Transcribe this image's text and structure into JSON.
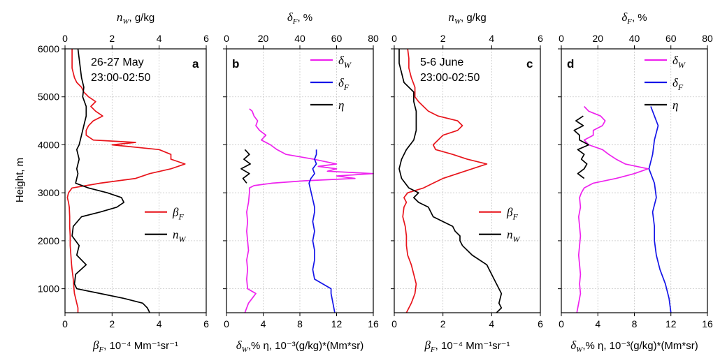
{
  "chart_data": [
    {
      "type": "line",
      "panel_label": "a",
      "annotation": [
        "26-27 May",
        "23:00-02:50"
      ],
      "ylabel": "Height, m",
      "ylim": [
        500,
        6000
      ],
      "yticks": [
        1000,
        2000,
        3000,
        4000,
        5000,
        6000
      ],
      "bottom_axis": {
        "label_sym": "β",
        "label_sub": "F",
        "label_rest": ", 10⁻⁴ Mm⁻¹sr⁻¹",
        "lim": [
          0,
          6
        ],
        "ticks": [
          "0",
          "2",
          "4",
          "6"
        ]
      },
      "top_axis": {
        "label_sym": "n",
        "label_sub": "W",
        "label_rest": ", g/kg",
        "lim": [
          0,
          6
        ],
        "ticks": [
          "0",
          "2",
          "4",
          "6"
        ]
      },
      "legend": {
        "position": "center-right"
      },
      "series": [
        {
          "name": "β",
          "sub": "F",
          "axis": "bottom",
          "color": "#e8141b",
          "y": [
            500,
            600,
            700,
            800,
            900,
            1000,
            1200,
            1400,
            1500,
            1700,
            1900,
            2100,
            2300,
            2500,
            2700,
            2800,
            2900,
            3000,
            3100,
            3200,
            3300,
            3400,
            3500,
            3600,
            3650,
            3700,
            3800,
            3900,
            4000,
            4050,
            4100,
            4200,
            4300,
            4400,
            4500,
            4600,
            4700,
            4800,
            4900,
            5000,
            5100,
            5200,
            5300,
            5400,
            5500,
            5600,
            5700,
            5800,
            5900,
            6000
          ],
          "x": [
            0.55,
            0.55,
            0.5,
            0.45,
            0.4,
            0.38,
            0.35,
            0.3,
            0.28,
            0.25,
            0.22,
            0.22,
            0.2,
            0.2,
            0.18,
            0.15,
            0.1,
            0.15,
            0.3,
            1.5,
            3.0,
            3.6,
            4.5,
            5.1,
            4.8,
            4.5,
            4.5,
            4.0,
            2.0,
            3.0,
            1.2,
            0.9,
            0.9,
            1.0,
            1.2,
            1.6,
            1.3,
            1.1,
            1.3,
            1.0,
            0.8,
            0.7,
            0.5,
            0.4,
            0.35,
            0.3,
            0.3,
            0.3,
            0.3,
            0.3
          ]
        },
        {
          "name": "n",
          "sub": "W",
          "axis": "top",
          "color": "#000000",
          "y": [
            500,
            600,
            700,
            800,
            900,
            1000,
            1100,
            1300,
            1500,
            1700,
            1900,
            2100,
            2300,
            2500,
            2600,
            2700,
            2800,
            2900,
            3000,
            3100,
            3200,
            3300,
            3400,
            3500,
            3600,
            3700,
            3800,
            3900,
            4000,
            4100,
            4200,
            4400,
            4600,
            4800,
            5000,
            5200,
            5400,
            5600,
            5800,
            6000
          ],
          "x": [
            3.6,
            3.5,
            3.3,
            2.5,
            1.5,
            0.5,
            0.4,
            0.45,
            0.9,
            0.5,
            0.6,
            0.3,
            0.35,
            0.7,
            1.5,
            2.2,
            2.5,
            2.4,
            1.8,
            1.0,
            0.45,
            0.5,
            0.55,
            0.5,
            0.55,
            0.6,
            0.55,
            0.5,
            0.6,
            0.65,
            0.7,
            0.8,
            0.9,
            0.9,
            0.75,
            0.8,
            0.7,
            0.65,
            0.6,
            0.55
          ]
        }
      ]
    },
    {
      "type": "line",
      "panel_label": "b",
      "bottom_axis": {
        "label_sym": "δ",
        "label_sub": "W",
        "label_rest": ",%  η, 10⁻³(g/kg)*(Mm*sr)",
        "lim": [
          0,
          16
        ],
        "ticks": [
          "0",
          "4",
          "8",
          "12",
          "16"
        ]
      },
      "top_axis": {
        "label_sym": "δ",
        "label_sub": "F",
        "label_rest": ", %",
        "lim": [
          0,
          80
        ],
        "ticks": [
          "0",
          "20",
          "40",
          "60",
          "80"
        ]
      },
      "ylim": [
        500,
        6000
      ],
      "legend": {
        "position": "top-right"
      },
      "series": [
        {
          "name": "δ",
          "sub": "W",
          "axis": "bottom",
          "color": "#ee22ee",
          "y": [
            500,
            700,
            900,
            1000,
            1200,
            1400,
            1600,
            1800,
            2000,
            2200,
            2400,
            2600,
            2800,
            3000,
            3100,
            3150,
            3200,
            3250,
            3300,
            3350,
            3400,
            3450,
            3500,
            3550,
            3600,
            3700,
            3800,
            3900,
            4000,
            4100,
            4200,
            4300,
            4400,
            4500,
            4600,
            4700,
            4750
          ],
          "x": [
            2.0,
            2.4,
            3.2,
            2.3,
            2.2,
            2.3,
            2.2,
            2.4,
            2.3,
            2.2,
            2.3,
            2.2,
            2.4,
            2.5,
            2.5,
            3.0,
            5.0,
            8.5,
            14.0,
            12.0,
            16.0,
            11.0,
            12.0,
            10.0,
            12.0,
            9.5,
            6.5,
            5.5,
            4.8,
            3.8,
            4.3,
            3.6,
            3.2,
            3.4,
            3.0,
            2.8,
            2.5
          ]
        },
        {
          "name": "δ",
          "sub": "F",
          "axis": "top",
          "color": "#1414e8",
          "y": [
            500,
            700,
            900,
            1000,
            1200,
            1400,
            1600,
            1800,
            2000,
            2200,
            2400,
            2600,
            2700,
            3200,
            3300,
            3400,
            3500,
            3600,
            3700,
            3800,
            3900
          ],
          "x": [
            59,
            58,
            57,
            57,
            48,
            47,
            48,
            48,
            47,
            48,
            47,
            48,
            48,
            45,
            46,
            48,
            47,
            49,
            48,
            49,
            49
          ]
        },
        {
          "name": "η",
          "axis": "bottom",
          "color": "#000000",
          "y": [
            3200,
            3300,
            3400,
            3500,
            3600,
            3700,
            3800,
            3900
          ],
          "x": [
            2.2,
            1.8,
            2.5,
            1.6,
            2.6,
            1.9,
            2.5,
            2.0
          ]
        }
      ]
    },
    {
      "type": "line",
      "panel_label": "c",
      "annotation": [
        "5-6 June",
        "23:00-02:50"
      ],
      "ylim": [
        500,
        6000
      ],
      "bottom_axis": {
        "label_sym": "β",
        "label_sub": "F",
        "label_rest": ", 10⁻⁴ Mm⁻¹sr⁻¹",
        "lim": [
          0,
          6
        ],
        "ticks": [
          "0",
          "2",
          "4",
          "6"
        ]
      },
      "top_axis": {
        "label_sym": "n",
        "label_sub": "W",
        "label_rest": ", g/kg",
        "lim": [
          0,
          6
        ],
        "ticks": [
          "0",
          "2",
          "4",
          "6"
        ]
      },
      "legend": {
        "position": "center-right"
      },
      "series": [
        {
          "name": "β",
          "sub": "F",
          "axis": "bottom",
          "color": "#e8141b",
          "y": [
            500,
            700,
            900,
            1100,
            1300,
            1500,
            1700,
            1900,
            2100,
            2300,
            2500,
            2700,
            2800,
            2900,
            3000,
            3100,
            3200,
            3300,
            3400,
            3500,
            3600,
            3700,
            3800,
            3900,
            4000,
            4100,
            4200,
            4300,
            4400,
            4500,
            4600,
            4700,
            4800,
            4900,
            5000,
            5200,
            5400,
            5600,
            5800,
            6000
          ],
          "x": [
            0.5,
            0.7,
            0.85,
            0.9,
            0.8,
            0.7,
            0.55,
            0.5,
            0.5,
            0.45,
            0.35,
            0.4,
            0.5,
            0.4,
            0.55,
            1.2,
            1.6,
            2.0,
            2.6,
            3.2,
            3.8,
            3.0,
            2.4,
            1.7,
            1.6,
            1.8,
            2.0,
            2.6,
            2.8,
            2.6,
            1.8,
            1.4,
            1.2,
            1.0,
            0.85,
            0.85,
            0.7,
            0.6,
            0.6,
            0.55
          ]
        },
        {
          "name": "n",
          "sub": "W",
          "axis": "top",
          "color": "#000000",
          "y": [
            500,
            600,
            700,
            900,
            1100,
            1300,
            1500,
            1700,
            1900,
            2000,
            2100,
            2200,
            2300,
            2500,
            2700,
            2800,
            2900,
            3000,
            3100,
            3300,
            3500,
            3700,
            3900,
            4100,
            4300,
            4500,
            4700,
            4900,
            5100,
            5300,
            5500,
            5700,
            6000
          ],
          "x": [
            4.2,
            4.4,
            4.3,
            4.4,
            4.2,
            4.0,
            3.8,
            3.2,
            2.8,
            2.7,
            2.7,
            2.5,
            2.4,
            1.6,
            1.4,
            1.0,
            0.8,
            1.0,
            0.6,
            0.3,
            0.2,
            0.3,
            0.5,
            0.8,
            0.9,
            0.9,
            0.9,
            0.8,
            0.8,
            0.4,
            0.3,
            0.2,
            0.2
          ]
        }
      ]
    },
    {
      "type": "line",
      "panel_label": "d",
      "bottom_axis": {
        "label_sym": "δ",
        "label_sub": "W",
        "label_rest": ",%  η, 10⁻³(g/kg)*(Mm*sr)",
        "lim": [
          0,
          16
        ],
        "ticks": [
          "0",
          "4",
          "8",
          "12",
          "16"
        ]
      },
      "top_axis": {
        "label_sym": "δ",
        "label_sub": "F",
        "label_rest": ", %",
        "lim": [
          0,
          80
        ],
        "ticks": [
          "0",
          "20",
          "40",
          "60",
          "80"
        ]
      },
      "ylim": [
        500,
        6000
      ],
      "legend": {
        "position": "top-right"
      },
      "series": [
        {
          "name": "δ",
          "sub": "W",
          "axis": "bottom",
          "color": "#ee22ee",
          "y": [
            500,
            700,
            900,
            1100,
            1300,
            1500,
            1700,
            1900,
            2100,
            2300,
            2500,
            2700,
            2900,
            3000,
            3100,
            3200,
            3300,
            3400,
            3500,
            3600,
            3700,
            3800,
            3900,
            4000,
            4100,
            4200,
            4300,
            4400,
            4500,
            4600,
            4700,
            4800
          ],
          "x": [
            1.7,
            1.9,
            2.1,
            2.0,
            2.1,
            2.0,
            1.9,
            2.0,
            2.1,
            2.0,
            1.9,
            2.1,
            2.0,
            2.2,
            2.5,
            3.5,
            6.0,
            8.0,
            9.5,
            7.0,
            6.0,
            5.2,
            4.5,
            3.0,
            2.5,
            3.5,
            3.5,
            4.5,
            4.8,
            4.3,
            3.0,
            2.5
          ]
        },
        {
          "name": "δ",
          "sub": "F",
          "axis": "top",
          "color": "#1414e8",
          "y": [
            500,
            800,
            1100,
            1400,
            1700,
            2000,
            2300,
            2600,
            2900,
            3200,
            3500,
            3800,
            4100,
            4400,
            4600,
            4800
          ],
          "x": [
            60,
            59,
            57,
            54,
            52,
            51,
            51,
            50,
            52,
            51,
            48,
            50,
            51,
            53,
            51,
            49
          ]
        },
        {
          "name": "η",
          "axis": "bottom",
          "color": "#000000",
          "y": [
            3300,
            3400,
            3500,
            3600,
            3700,
            3800,
            3900,
            4000,
            4100,
            4200,
            4300,
            4400,
            4500,
            4600
          ],
          "x": [
            2.5,
            1.8,
            2.5,
            2.8,
            2.2,
            2.5,
            1.8,
            3.0,
            2.0,
            2.0,
            1.4,
            2.4,
            1.6,
            2.4
          ]
        }
      ]
    }
  ]
}
